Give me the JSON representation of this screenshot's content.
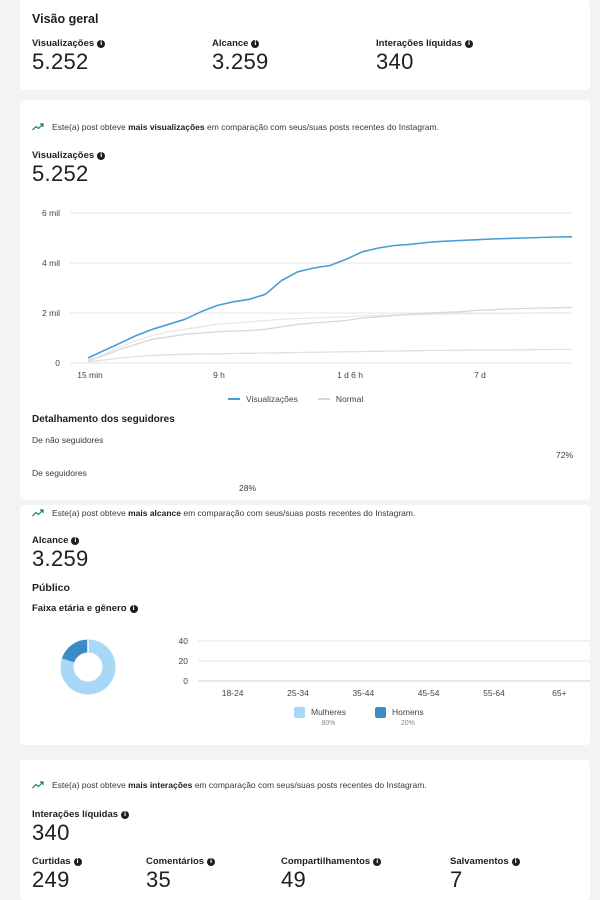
{
  "overview": {
    "title": "Visão geral",
    "metrics": [
      {
        "label": "Visualizações",
        "value": "5.252"
      },
      {
        "label": "Alcance",
        "value": "3.259"
      },
      {
        "label": "Interações líquidas",
        "value": "340"
      }
    ]
  },
  "views_section": {
    "insight_prefix": "Este(a) post obteve ",
    "insight_bold": "mais visualizações",
    "insight_suffix": " em comparação com seus/suas posts recentes do Instagram.",
    "label": "Visualizações",
    "value": "5.252",
    "legend": [
      "Visualizações",
      "Normal"
    ]
  },
  "chart_data": [
    {
      "type": "line",
      "x_ticks": [
        "15 min",
        "9 h",
        "1 d 6 h",
        "7 d"
      ],
      "y_ticks": [
        "0",
        "2 mil",
        "4 mil",
        "6 mil"
      ],
      "ylim": [
        0,
        6000
      ],
      "series": [
        {
          "name": "Visualizações",
          "color": "#4a9ed3",
          "values": [
            200,
            500,
            800,
            1100,
            1350,
            1550,
            1750,
            2050,
            2300,
            2450,
            2550,
            2750,
            3300,
            3650,
            3800,
            3900,
            4150,
            4450,
            4600,
            4700,
            4750,
            4820,
            4870,
            4900,
            4930,
            4960,
            4980,
            5000,
            5020,
            5040,
            5050
          ]
        },
        {
          "name": "Normal",
          "color": "#d7d7d7",
          "values": [
            100,
            300,
            550,
            750,
            950,
            1050,
            1150,
            1200,
            1250,
            1280,
            1300,
            1350,
            1450,
            1550,
            1600,
            1650,
            1700,
            1800,
            1850,
            1900,
            1950,
            2000,
            2020,
            2050,
            2100,
            2130,
            2160,
            2180,
            2200,
            2210,
            2220
          ]
        },
        {
          "name": "",
          "color": "#e0e0e0",
          "values": [
            50,
            120,
            200,
            260,
            300,
            330,
            350,
            360,
            370,
            380,
            390,
            400,
            410,
            420,
            430,
            440,
            450,
            460,
            470,
            480,
            490,
            500,
            505,
            510,
            515,
            520,
            525,
            530,
            535,
            540,
            545
          ]
        },
        {
          "name": "",
          "color": "#e8e8e8",
          "values": [
            80,
            350,
            650,
            900,
            1100,
            1250,
            1350,
            1450,
            1550,
            1600,
            1650,
            1700,
            1750,
            1780,
            1800,
            1820,
            1850,
            1880,
            1900,
            1920,
            1940,
            1950,
            1960,
            1970,
            1980,
            1985,
            1990,
            1995,
            2000,
            2000,
            2000
          ]
        }
      ]
    },
    {
      "type": "pie",
      "labels": [
        "Mulheres",
        "Homens"
      ],
      "values": [
        80,
        20
      ],
      "colors": [
        "#a8d8f5",
        "#3b8cc6"
      ]
    },
    {
      "type": "bar",
      "categories": [
        "18-24",
        "25-34",
        "35-44",
        "45-54",
        "55-64",
        "65+"
      ],
      "y_ticks": [
        "0",
        "20",
        "40"
      ],
      "ylim": [
        0,
        40
      ],
      "series": [
        {
          "name": "Mulheres",
          "values": [
            0,
            0,
            0,
            0,
            0,
            0
          ]
        },
        {
          "name": "Homens",
          "values": [
            0,
            0,
            0,
            0,
            0,
            0
          ]
        }
      ]
    }
  ],
  "followers": {
    "title": "Detalhamento dos seguidores",
    "non_followers_label": "De não seguidores",
    "non_followers_pct": "72%",
    "followers_label": "De seguidores",
    "followers_pct": "28%"
  },
  "reach_section": {
    "insight_prefix": "Este(a) post obteve ",
    "insight_bold": "mais alcance",
    "insight_suffix": " em comparação com seus/suas posts recentes do Instagram.",
    "label": "Alcance",
    "value": "3.259",
    "audience_title": "Público",
    "age_gender_label": "Faixa etária e gênero",
    "legend": [
      {
        "name": "Mulheres",
        "pct": "80%",
        "color": "#a8d8f5"
      },
      {
        "name": "Homens",
        "pct": "20%",
        "color": "#3b8cc6"
      }
    ]
  },
  "interactions_section": {
    "insight_prefix": "Este(a) post obteve ",
    "insight_bold": "mais interações",
    "insight_suffix": " em comparação com seus/suas posts recentes do Instagram.",
    "label": "Interações líquidas",
    "value": "340",
    "metrics": [
      {
        "label": "Curtidas",
        "value": "249"
      },
      {
        "label": "Comentários",
        "value": "35"
      },
      {
        "label": "Compartilhamentos",
        "value": "49"
      },
      {
        "label": "Salvamentos",
        "value": "7"
      }
    ]
  },
  "colors": {
    "accent": "#4a9ed3",
    "normal": "#d7d7d7",
    "trend": "#1a7f5a"
  }
}
